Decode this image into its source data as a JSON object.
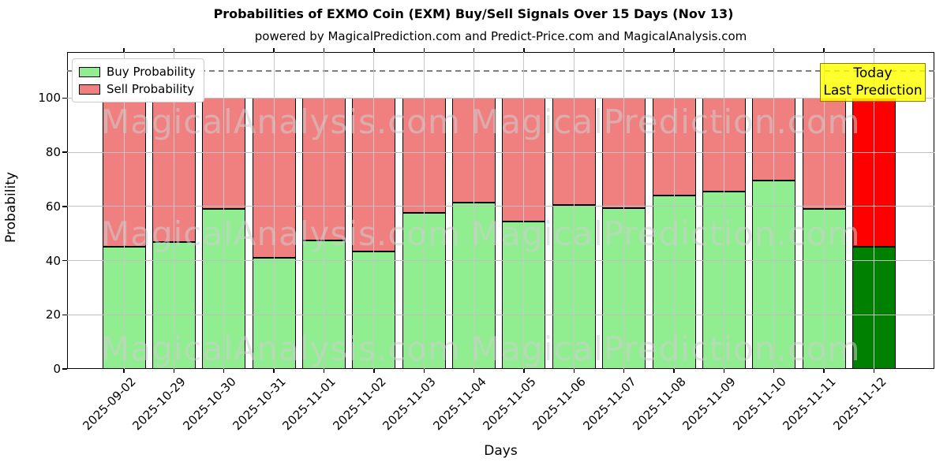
{
  "title": "Probabilities of EXMO Coin (EXM) Buy/Sell Signals Over 15 Days (Nov 13)",
  "subtitle": "powered by MagicalPrediction.com and Predict-Price.com and MagicalAnalysis.com",
  "legend": {
    "buy_label": "Buy Probability",
    "sell_label": "Sell Probability"
  },
  "annotation": {
    "line1": "Today",
    "line2": "Last Prediction"
  },
  "axes": {
    "xlabel": "Days",
    "ylabel": "Probability",
    "yticks": [
      0,
      20,
      40,
      60,
      80,
      100
    ]
  },
  "watermarks": {
    "left": "MagicalAnalysis.com",
    "right": "MagicalPrediction.com"
  },
  "colors": {
    "buy": "#90EE90",
    "sell": "#F08080",
    "last_buy": "#008000",
    "last_sell": "#FF0000",
    "bar_edge": "#000000",
    "annotation_bg": "#FFFF00",
    "grid": "#BFBFBF",
    "dashed_line": "#7F7F7F"
  },
  "chart_data": {
    "type": "bar",
    "stacked": true,
    "title": "Probabilities of EXMO Coin (EXM) Buy/Sell Signals Over 15 Days (Nov 13)",
    "subtitle": "powered by MagicalPrediction.com and Predict-Price.com and MagicalAnalysis.com",
    "xlabel": "Days",
    "ylabel": "Probability",
    "ylim": [
      0,
      117
    ],
    "yticks": [
      0,
      20,
      40,
      60,
      80,
      100
    ],
    "dashed_hline_y": 110,
    "grid": true,
    "legend_position": "upper left",
    "highlight_last_bar": true,
    "categories": [
      "2025-09-02",
      "2025-10-29",
      "2025-10-30",
      "2025-10-31",
      "2025-11-01",
      "2025-11-02",
      "2025-11-03",
      "2025-11-04",
      "2025-11-05",
      "2025-11-06",
      "2025-11-07",
      "2025-11-08",
      "2025-11-09",
      "2025-11-10",
      "2025-11-11",
      "2025-11-12"
    ],
    "series": [
      {
        "name": "Buy Probability",
        "values": [
          45,
          47,
          59,
          41,
          47.5,
          43.5,
          57.5,
          61.5,
          54.5,
          60.5,
          59.5,
          64,
          65.5,
          69.5,
          59,
          45
        ]
      },
      {
        "name": "Sell Probability",
        "values": [
          55,
          53,
          41,
          59,
          52.5,
          56.5,
          42.5,
          38.5,
          45.5,
          39.5,
          40.5,
          36,
          34.5,
          30.5,
          41,
          55
        ]
      }
    ]
  }
}
